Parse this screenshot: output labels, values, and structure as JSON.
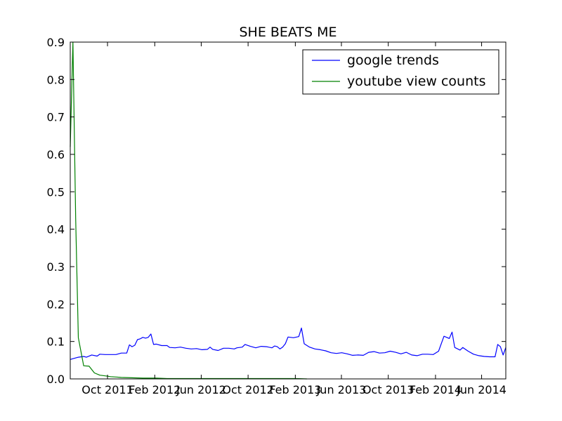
{
  "chart_data": {
    "type": "line",
    "title": "SHE BEATS ME",
    "xlabel": "",
    "ylabel": "",
    "ylim": [
      0.0,
      0.9
    ],
    "xlim": [
      "2011-06-26",
      "2014-08-03"
    ],
    "y_ticks": [
      {
        "value": 0.0,
        "label": "0.0"
      },
      {
        "value": 0.1,
        "label": "0.1"
      },
      {
        "value": 0.2,
        "label": "0.2"
      },
      {
        "value": 0.3,
        "label": "0.3"
      },
      {
        "value": 0.4,
        "label": "0.4"
      },
      {
        "value": 0.5,
        "label": "0.5"
      },
      {
        "value": 0.6,
        "label": "0.6"
      },
      {
        "value": 0.7,
        "label": "0.7"
      },
      {
        "value": 0.8,
        "label": "0.8"
      },
      {
        "value": 0.9,
        "label": "0.9"
      }
    ],
    "x_ticks": [
      {
        "date": "2011-10-01",
        "label": "Oct 2011"
      },
      {
        "date": "2012-02-01",
        "label": "Feb 2012"
      },
      {
        "date": "2012-06-01",
        "label": "Jun 2012"
      },
      {
        "date": "2012-10-01",
        "label": "Oct 2012"
      },
      {
        "date": "2013-02-01",
        "label": "Feb 2013"
      },
      {
        "date": "2013-06-01",
        "label": "Jun 2013"
      },
      {
        "date": "2013-10-01",
        "label": "Oct 2013"
      },
      {
        "date": "2014-02-01",
        "label": "Feb 2014"
      },
      {
        "date": "2014-06-01",
        "label": "Jun 2014"
      }
    ],
    "legend_position": "top-right",
    "grid": false,
    "series": [
      {
        "name": "google trends",
        "color": "#0000ff",
        "points": [
          [
            "2011-06-26",
            0.052
          ],
          [
            "2011-07-03",
            0.054
          ],
          [
            "2011-07-17",
            0.058
          ],
          [
            "2011-07-31",
            0.06
          ],
          [
            "2011-08-07",
            0.058
          ],
          [
            "2011-08-21",
            0.064
          ],
          [
            "2011-09-04",
            0.061
          ],
          [
            "2011-09-11",
            0.066
          ],
          [
            "2011-09-25",
            0.065
          ],
          [
            "2011-10-09",
            0.065
          ],
          [
            "2011-10-23",
            0.065
          ],
          [
            "2011-11-06",
            0.069
          ],
          [
            "2011-11-20",
            0.069
          ],
          [
            "2011-11-27",
            0.091
          ],
          [
            "2011-12-04",
            0.086
          ],
          [
            "2011-12-11",
            0.09
          ],
          [
            "2011-12-18",
            0.105
          ],
          [
            "2011-12-25",
            0.107
          ],
          [
            "2012-01-01",
            0.111
          ],
          [
            "2012-01-08",
            0.109
          ],
          [
            "2012-01-15",
            0.111
          ],
          [
            "2012-01-22",
            0.12
          ],
          [
            "2012-01-29",
            0.092
          ],
          [
            "2012-02-05",
            0.093
          ],
          [
            "2012-02-19",
            0.089
          ],
          [
            "2012-03-04",
            0.089
          ],
          [
            "2012-03-11",
            0.084
          ],
          [
            "2012-03-25",
            0.083
          ],
          [
            "2012-04-08",
            0.085
          ],
          [
            "2012-04-22",
            0.082
          ],
          [
            "2012-05-06",
            0.08
          ],
          [
            "2012-05-20",
            0.081
          ],
          [
            "2012-06-03",
            0.078
          ],
          [
            "2012-06-17",
            0.079
          ],
          [
            "2012-06-24",
            0.085
          ],
          [
            "2012-07-01",
            0.079
          ],
          [
            "2012-07-15",
            0.076
          ],
          [
            "2012-07-29",
            0.082
          ],
          [
            "2012-08-12",
            0.082
          ],
          [
            "2012-08-26",
            0.08
          ],
          [
            "2012-09-02",
            0.083
          ],
          [
            "2012-09-16",
            0.085
          ],
          [
            "2012-09-23",
            0.092
          ],
          [
            "2012-10-07",
            0.087
          ],
          [
            "2012-10-21",
            0.083
          ],
          [
            "2012-11-04",
            0.087
          ],
          [
            "2012-11-18",
            0.086
          ],
          [
            "2012-12-02",
            0.083
          ],
          [
            "2012-12-09",
            0.088
          ],
          [
            "2012-12-16",
            0.086
          ],
          [
            "2012-12-23",
            0.08
          ],
          [
            "2012-12-30",
            0.085
          ],
          [
            "2013-01-06",
            0.094
          ],
          [
            "2013-01-13",
            0.112
          ],
          [
            "2013-01-27",
            0.11
          ],
          [
            "2013-02-10",
            0.113
          ],
          [
            "2013-02-17",
            0.136
          ],
          [
            "2013-02-24",
            0.094
          ],
          [
            "2013-03-10",
            0.085
          ],
          [
            "2013-03-24",
            0.08
          ],
          [
            "2013-04-07",
            0.078
          ],
          [
            "2013-04-21",
            0.075
          ],
          [
            "2013-05-05",
            0.07
          ],
          [
            "2013-05-19",
            0.068
          ],
          [
            "2013-06-02",
            0.07
          ],
          [
            "2013-06-16",
            0.067
          ],
          [
            "2013-06-30",
            0.063
          ],
          [
            "2013-07-14",
            0.064
          ],
          [
            "2013-07-28",
            0.063
          ],
          [
            "2013-08-11",
            0.071
          ],
          [
            "2013-08-25",
            0.073
          ],
          [
            "2013-09-08",
            0.069
          ],
          [
            "2013-09-22",
            0.07
          ],
          [
            "2013-10-06",
            0.074
          ],
          [
            "2013-10-20",
            0.071
          ],
          [
            "2013-11-03",
            0.067
          ],
          [
            "2013-11-17",
            0.071
          ],
          [
            "2013-12-01",
            0.064
          ],
          [
            "2013-12-15",
            0.062
          ],
          [
            "2013-12-29",
            0.066
          ],
          [
            "2014-01-12",
            0.066
          ],
          [
            "2014-01-26",
            0.065
          ],
          [
            "2014-02-09",
            0.074
          ],
          [
            "2014-02-23",
            0.114
          ],
          [
            "2014-03-09",
            0.108
          ],
          [
            "2014-03-16",
            0.125
          ],
          [
            "2014-03-23",
            0.084
          ],
          [
            "2014-04-06",
            0.077
          ],
          [
            "2014-04-13",
            0.084
          ],
          [
            "2014-04-27",
            0.074
          ],
          [
            "2014-05-11",
            0.066
          ],
          [
            "2014-05-25",
            0.062
          ],
          [
            "2014-06-08",
            0.06
          ],
          [
            "2014-06-22",
            0.059
          ],
          [
            "2014-07-06",
            0.059
          ],
          [
            "2014-07-13",
            0.092
          ],
          [
            "2014-07-20",
            0.086
          ],
          [
            "2014-07-27",
            0.064
          ],
          [
            "2014-08-03",
            0.084
          ]
        ]
      },
      {
        "name": "youtube view counts",
        "color": "#008000",
        "points": [
          [
            "2011-06-26",
            0.62
          ],
          [
            "2011-07-03",
            0.9
          ],
          [
            "2011-07-10",
            0.43
          ],
          [
            "2011-07-17",
            0.11
          ],
          [
            "2011-07-31",
            0.035
          ],
          [
            "2011-08-14",
            0.034
          ],
          [
            "2011-08-28",
            0.016
          ],
          [
            "2011-09-11",
            0.01
          ],
          [
            "2011-09-25",
            0.008
          ],
          [
            "2011-10-09",
            0.006
          ],
          [
            "2011-10-23",
            0.005
          ],
          [
            "2011-11-06",
            0.004
          ],
          [
            "2011-12-04",
            0.003
          ],
          [
            "2012-01-01",
            0.002
          ],
          [
            "2012-02-05",
            0.002
          ],
          [
            "2012-03-04",
            0.001
          ],
          [
            "2012-04-08",
            0.001
          ],
          [
            "2012-05-06",
            0.001
          ],
          [
            "2012-06-03",
            0.001
          ],
          [
            "2012-07-01",
            0.001
          ],
          [
            "2012-08-05",
            0.001
          ],
          [
            "2012-09-02",
            0.001
          ],
          [
            "2012-10-07",
            0.001
          ],
          [
            "2012-11-04",
            0.001
          ],
          [
            "2012-12-02",
            0.001
          ],
          [
            "2013-01-06",
            0.001
          ],
          [
            "2013-02-03",
            0.001
          ],
          [
            "2013-03-03",
            0.0
          ]
        ]
      }
    ]
  }
}
